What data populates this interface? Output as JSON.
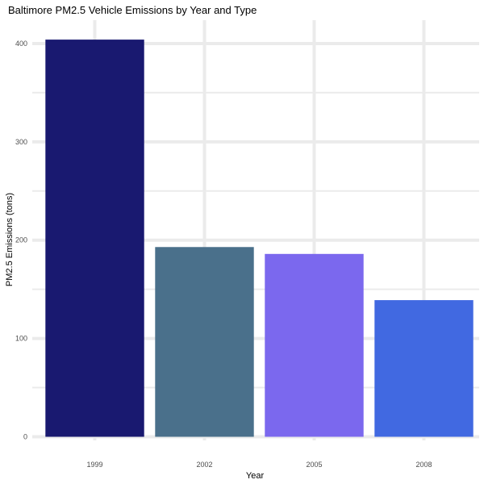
{
  "chart_data": {
    "type": "bar",
    "title": "Baltimore PM2.5 Vehicle Emissions by Year and Type",
    "xlabel": "Year",
    "ylabel": "PM2.5 Emissions (tons)",
    "categories": [
      "1999",
      "2002",
      "2005",
      "2008"
    ],
    "values": [
      404,
      193,
      186,
      139
    ],
    "colors": [
      "#191970",
      "#4A708B",
      "#7B68EE",
      "#4169E1"
    ],
    "ylim": [
      0,
      410
    ],
    "yticks": [
      0,
      100,
      200,
      300,
      400
    ],
    "grid": true,
    "legend": "none"
  },
  "theme": {
    "background": "#ffffff",
    "grid_color": "#ebebeb"
  }
}
